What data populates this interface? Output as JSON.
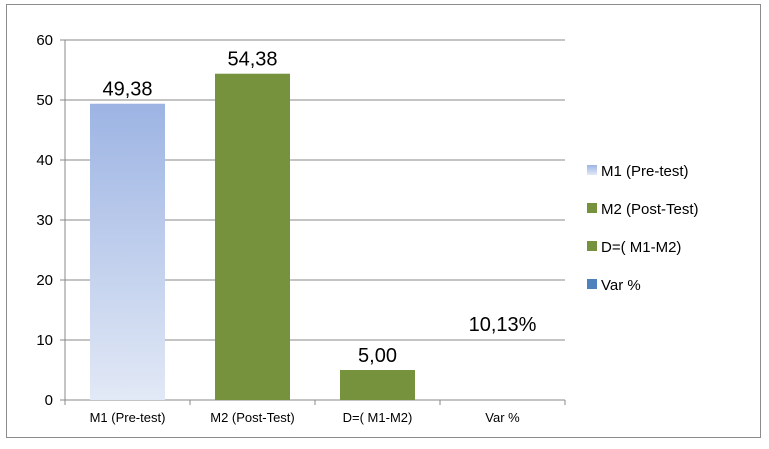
{
  "chart_data": {
    "type": "bar",
    "categories": [
      "M1 (Pre-test)",
      "M2 (Post-Test)",
      "D=( M1-M2)",
      "Var %"
    ],
    "values": [
      49.38,
      54.38,
      5.0,
      10.13
    ],
    "data_labels": [
      "49,38",
      "54,38",
      "5,00",
      "10,13%"
    ],
    "bars_drawn": [
      true,
      true,
      true,
      false
    ],
    "ylim": [
      0,
      60
    ],
    "yticks": [
      0,
      10,
      20,
      30,
      40,
      50,
      60
    ],
    "ytick_labels": [
      "0",
      "10",
      "20",
      "30",
      "40",
      "50",
      "60"
    ],
    "grid": true,
    "title": "",
    "xlabel": "",
    "ylabel": "",
    "legend_position": "right",
    "legend": [
      {
        "label": "M1 (Pre-test)",
        "color": "#9db4e3"
      },
      {
        "label": "M2 (Post-Test)",
        "color": "#76923c"
      },
      {
        "label": "D=( M1-M2)",
        "color": "#76923c"
      },
      {
        "label": "Var %",
        "color": "#4f81bd"
      }
    ],
    "colors": {
      "m1_top": "#9db4e3",
      "m1_bottom": "#e2e9f6",
      "green": "#76923c",
      "blue": "#4f81bd",
      "grid": "#888888",
      "axis": "#888888"
    }
  }
}
